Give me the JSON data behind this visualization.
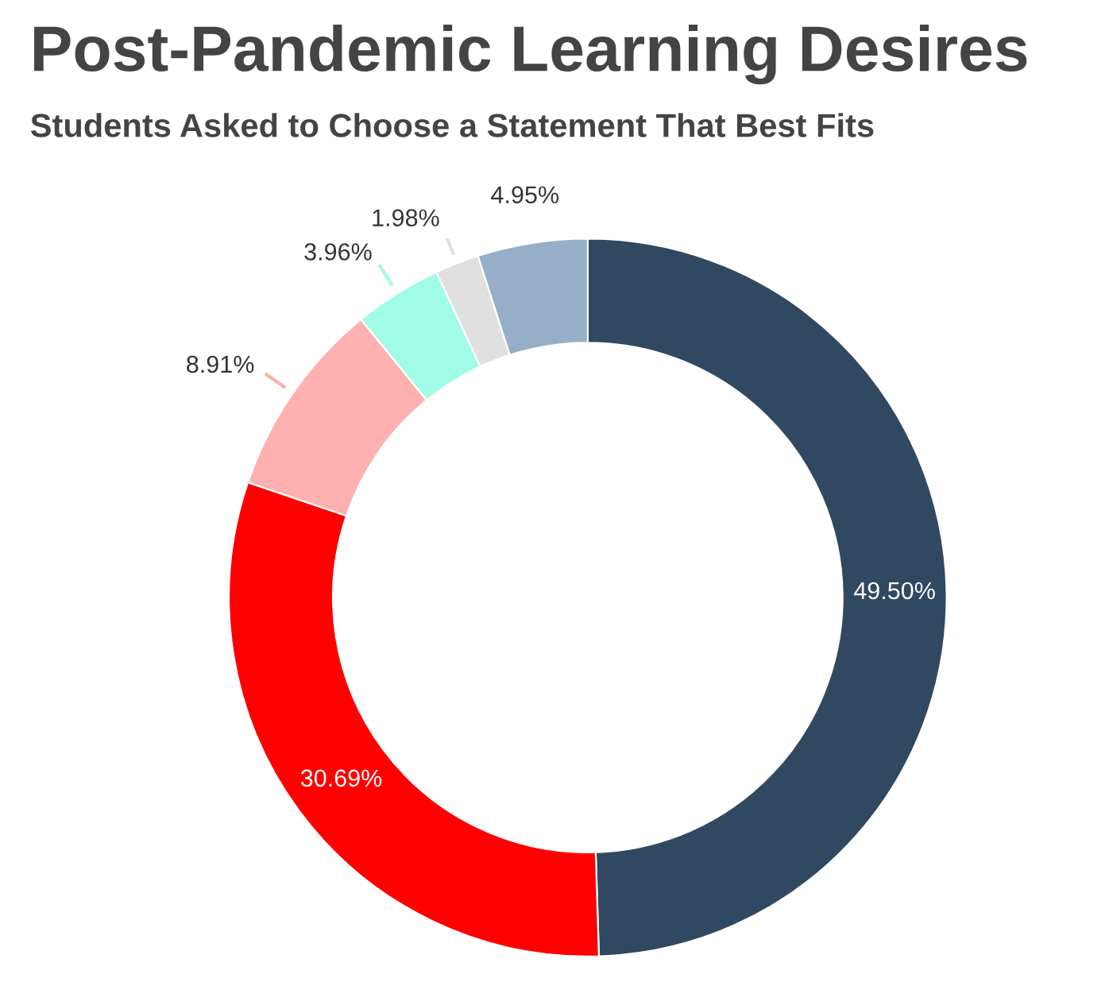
{
  "chart_data": {
    "type": "donut",
    "title": "Post-Pandemic Learning Desires",
    "subtitle": "Students Asked to Choose a Statement That Best Fits",
    "categories": [
      null,
      null,
      null,
      null,
      null,
      null
    ],
    "values": [
      49.5,
      30.69,
      8.91,
      3.96,
      1.98,
      4.95
    ],
    "colors": [
      "#314861",
      "#ff0000",
      "#ffb0b0",
      "#a0fce4",
      "#e0e0e0",
      "#97aec8"
    ],
    "value_labels": [
      "49.50%",
      "30.69%",
      "8.91%",
      "3.96%",
      "1.98%",
      "4.95%"
    ],
    "legend": false
  }
}
